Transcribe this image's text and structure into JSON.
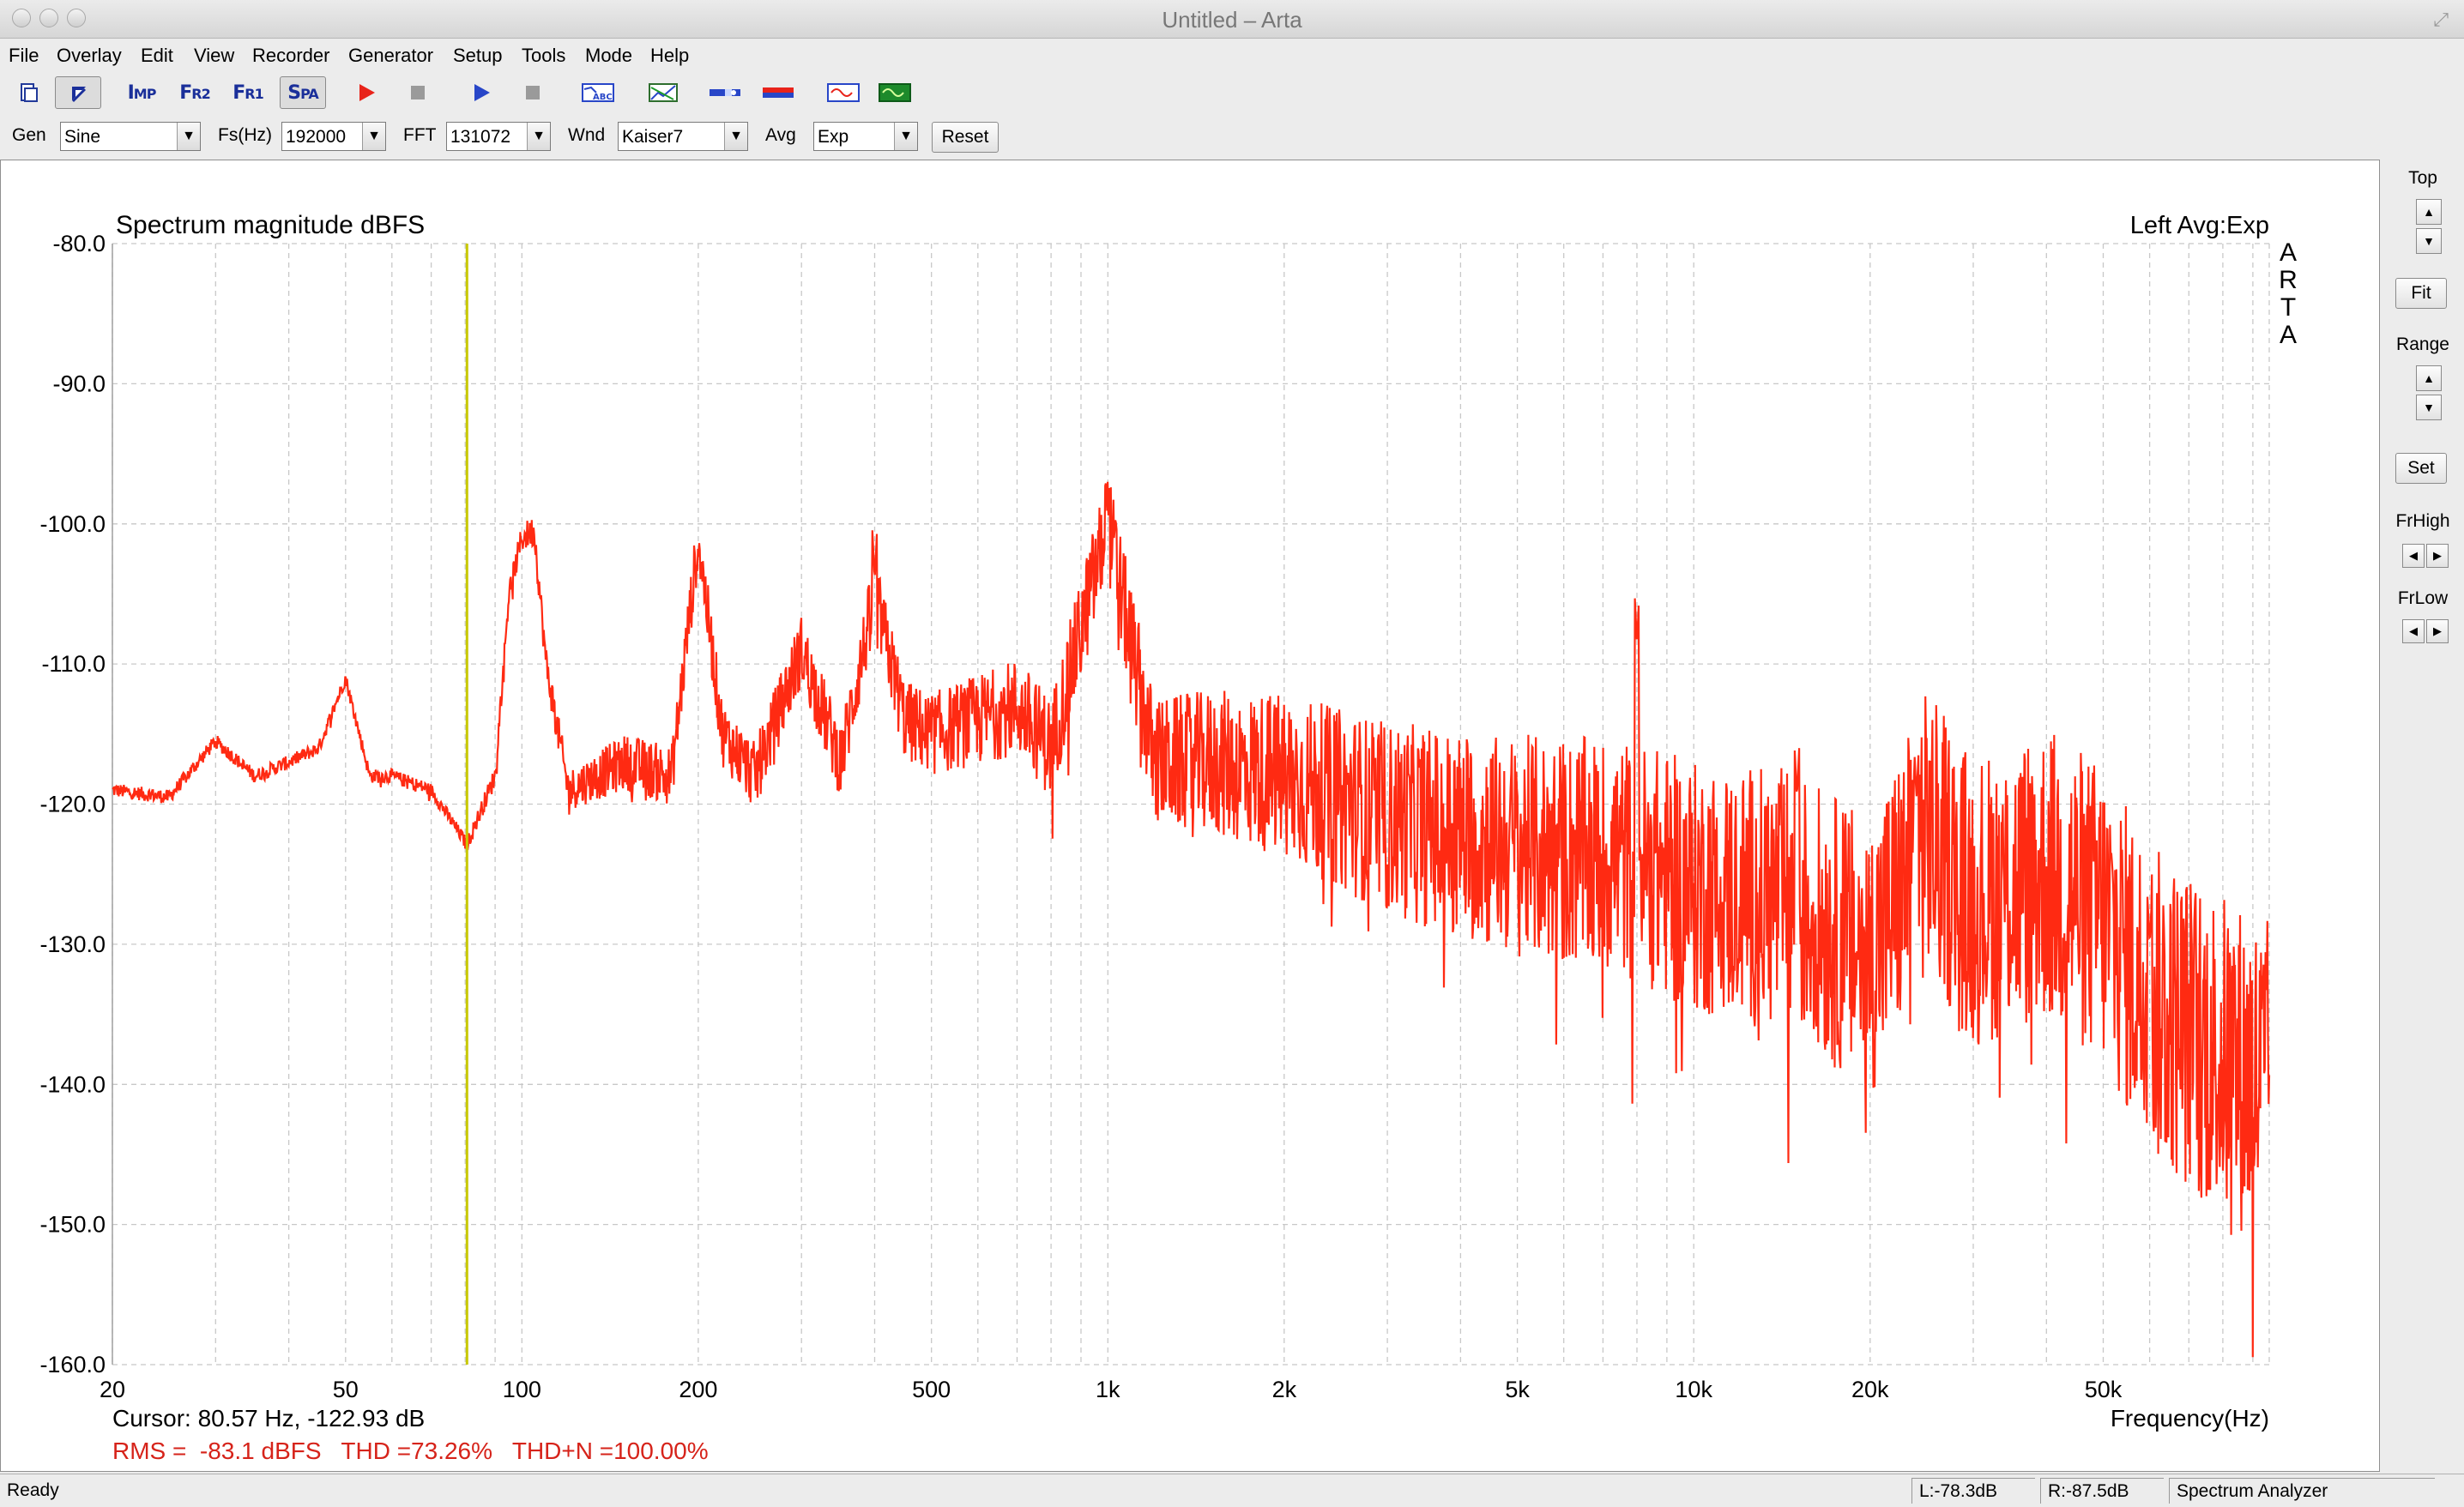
{
  "window": {
    "title": "Untitled – Arta"
  },
  "menu": [
    "File",
    "Overlay",
    "Edit",
    "View",
    "Recorder",
    "Generator",
    "Setup",
    "Tools",
    "Mode",
    "Help"
  ],
  "toolbar": {
    "buttons": [
      {
        "name": "new-file-icon",
        "pressed": false
      },
      {
        "name": "cursor-arrow-icon",
        "pressed": true
      },
      {
        "name": "impulse-mode-button",
        "label": "IMP",
        "pressed": false
      },
      {
        "name": "dual-channel-fr-button",
        "label": "FR2",
        "pressed": false
      },
      {
        "name": "single-channel-fr-button",
        "label": "FR1",
        "pressed": false
      },
      {
        "name": "spectrum-analyzer-button",
        "label": "SPA",
        "pressed": true
      },
      {
        "name": "record-icon",
        "pressed": false
      },
      {
        "name": "stop-record-icon",
        "pressed": false
      },
      {
        "name": "play-icon",
        "pressed": false
      },
      {
        "name": "stop-play-icon",
        "pressed": false
      },
      {
        "name": "abc-chart-icon",
        "pressed": false
      },
      {
        "name": "analysis-icon",
        "pressed": false
      },
      {
        "name": "level-meter-icon",
        "pressed": false
      },
      {
        "name": "colorbar-icon",
        "pressed": false
      },
      {
        "name": "oscilloscope-icon",
        "pressed": false
      },
      {
        "name": "generator-monitor-icon",
        "pressed": false
      }
    ]
  },
  "params": {
    "gen_label": "Gen",
    "gen_value": "Sine",
    "fs_label": "Fs(Hz)",
    "fs_value": "192000",
    "fft_label": "FFT",
    "fft_value": "131072",
    "wnd_label": "Wnd",
    "wnd_value": "Kaiser7",
    "avg_label": "Avg",
    "avg_value": "Exp",
    "reset_label": "Reset"
  },
  "chart_data": {
    "type": "line",
    "title": "Spectrum magnitude dBFS",
    "top_right_label": "Left  Avg:Exp",
    "watermark": "ARTA",
    "xlabel": "Frequency(Hz)",
    "ylabel": "",
    "x_scale": "log",
    "xlim": [
      20,
      96000
    ],
    "ylim": [
      -160,
      -80
    ],
    "x_ticks": [
      {
        "v": 20,
        "label": "20"
      },
      {
        "v": 50,
        "label": "50"
      },
      {
        "v": 100,
        "label": "100"
      },
      {
        "v": 200,
        "label": "200"
      },
      {
        "v": 500,
        "label": "500"
      },
      {
        "v": 1000,
        "label": "1k"
      },
      {
        "v": 2000,
        "label": "2k"
      },
      {
        "v": 5000,
        "label": "5k"
      },
      {
        "v": 10000,
        "label": "10k"
      },
      {
        "v": 20000,
        "label": "20k"
      },
      {
        "v": 50000,
        "label": "50k"
      }
    ],
    "y_ticks": [
      {
        "v": -80,
        "label": "-80.0"
      },
      {
        "v": -90,
        "label": "-90.0"
      },
      {
        "v": -100,
        "label": "-100.0"
      },
      {
        "v": -110,
        "label": "-110.0"
      },
      {
        "v": -120,
        "label": "-120.0"
      },
      {
        "v": -130,
        "label": "-130.0"
      },
      {
        "v": -140,
        "label": "-140.0"
      },
      {
        "v": -150,
        "label": "-150.0"
      },
      {
        "v": -160,
        "label": "-160.0"
      }
    ],
    "grid": true,
    "series": [
      {
        "color": "#ff2a12",
        "envelope": [
          [
            20,
            -119
          ],
          [
            25,
            -119.5
          ],
          [
            30,
            -115.5
          ],
          [
            35,
            -118
          ],
          [
            40,
            -117
          ],
          [
            45,
            -116
          ],
          [
            50,
            -111
          ],
          [
            55,
            -118
          ],
          [
            60,
            -118
          ],
          [
            70,
            -119
          ],
          [
            80.57,
            -122.9
          ],
          [
            90,
            -118
          ],
          [
            95,
            -105
          ],
          [
            100,
            -101
          ],
          [
            105,
            -100.5
          ],
          [
            110,
            -110
          ],
          [
            120,
            -119
          ],
          [
            150,
            -117
          ],
          [
            180,
            -118
          ],
          [
            200,
            -101
          ],
          [
            220,
            -115
          ],
          [
            250,
            -118
          ],
          [
            300,
            -109
          ],
          [
            350,
            -117
          ],
          [
            400,
            -105
          ],
          [
            450,
            -114
          ],
          [
            500,
            -115
          ],
          [
            600,
            -114
          ],
          [
            700,
            -113
          ],
          [
            800,
            -116
          ],
          [
            1000,
            -100
          ],
          [
            1200,
            -117
          ],
          [
            1500,
            -117
          ],
          [
            2000,
            -118
          ],
          [
            3000,
            -121
          ],
          [
            5000,
            -123
          ],
          [
            8000,
            -124
          ],
          [
            10000,
            -126
          ],
          [
            15000,
            -127
          ],
          [
            20000,
            -131
          ],
          [
            25000,
            -122
          ],
          [
            30000,
            -127
          ],
          [
            40000,
            -125
          ],
          [
            50000,
            -128
          ],
          [
            60000,
            -134
          ],
          [
            80000,
            -138
          ],
          [
            95000,
            -140
          ]
        ],
        "noise_spread": [
          [
            20,
            0.5
          ],
          [
            80,
            0.5
          ],
          [
            150,
            2
          ],
          [
            500,
            3
          ],
          [
            1000,
            4
          ],
          [
            2000,
            6
          ],
          [
            5000,
            8
          ],
          [
            10000,
            9
          ],
          [
            20000,
            10
          ],
          [
            50000,
            11
          ],
          [
            95000,
            12
          ]
        ],
        "peaks": [
          [
            400,
            -104
          ],
          [
            1000,
            -100.2
          ],
          [
            8000,
            -108.5
          ],
          [
            15000,
            -119.5
          ],
          [
            24000,
            -119.5
          ],
          [
            60000,
            -130
          ]
        ]
      }
    ],
    "cursor": {
      "x": 80.57,
      "color": "#c8c800"
    },
    "cursor_readout": "Cursor: 80.57 Hz, -122.93 dB",
    "metrics": "RMS =  -83.1 dBFS   THD =73.26%   THD+N =100.00%",
    "metrics_color": "#d6231a"
  },
  "side": {
    "top_label": "Top",
    "fit_label": "Fit",
    "range_label": "Range",
    "set_label": "Set",
    "frhigh_label": "FrHigh",
    "frlow_label": "FrLow"
  },
  "status": {
    "ready": "Ready",
    "left_level": "L:-78.3dB",
    "right_level": "R:-87.5dB",
    "mode": "Spectrum Analyzer"
  }
}
